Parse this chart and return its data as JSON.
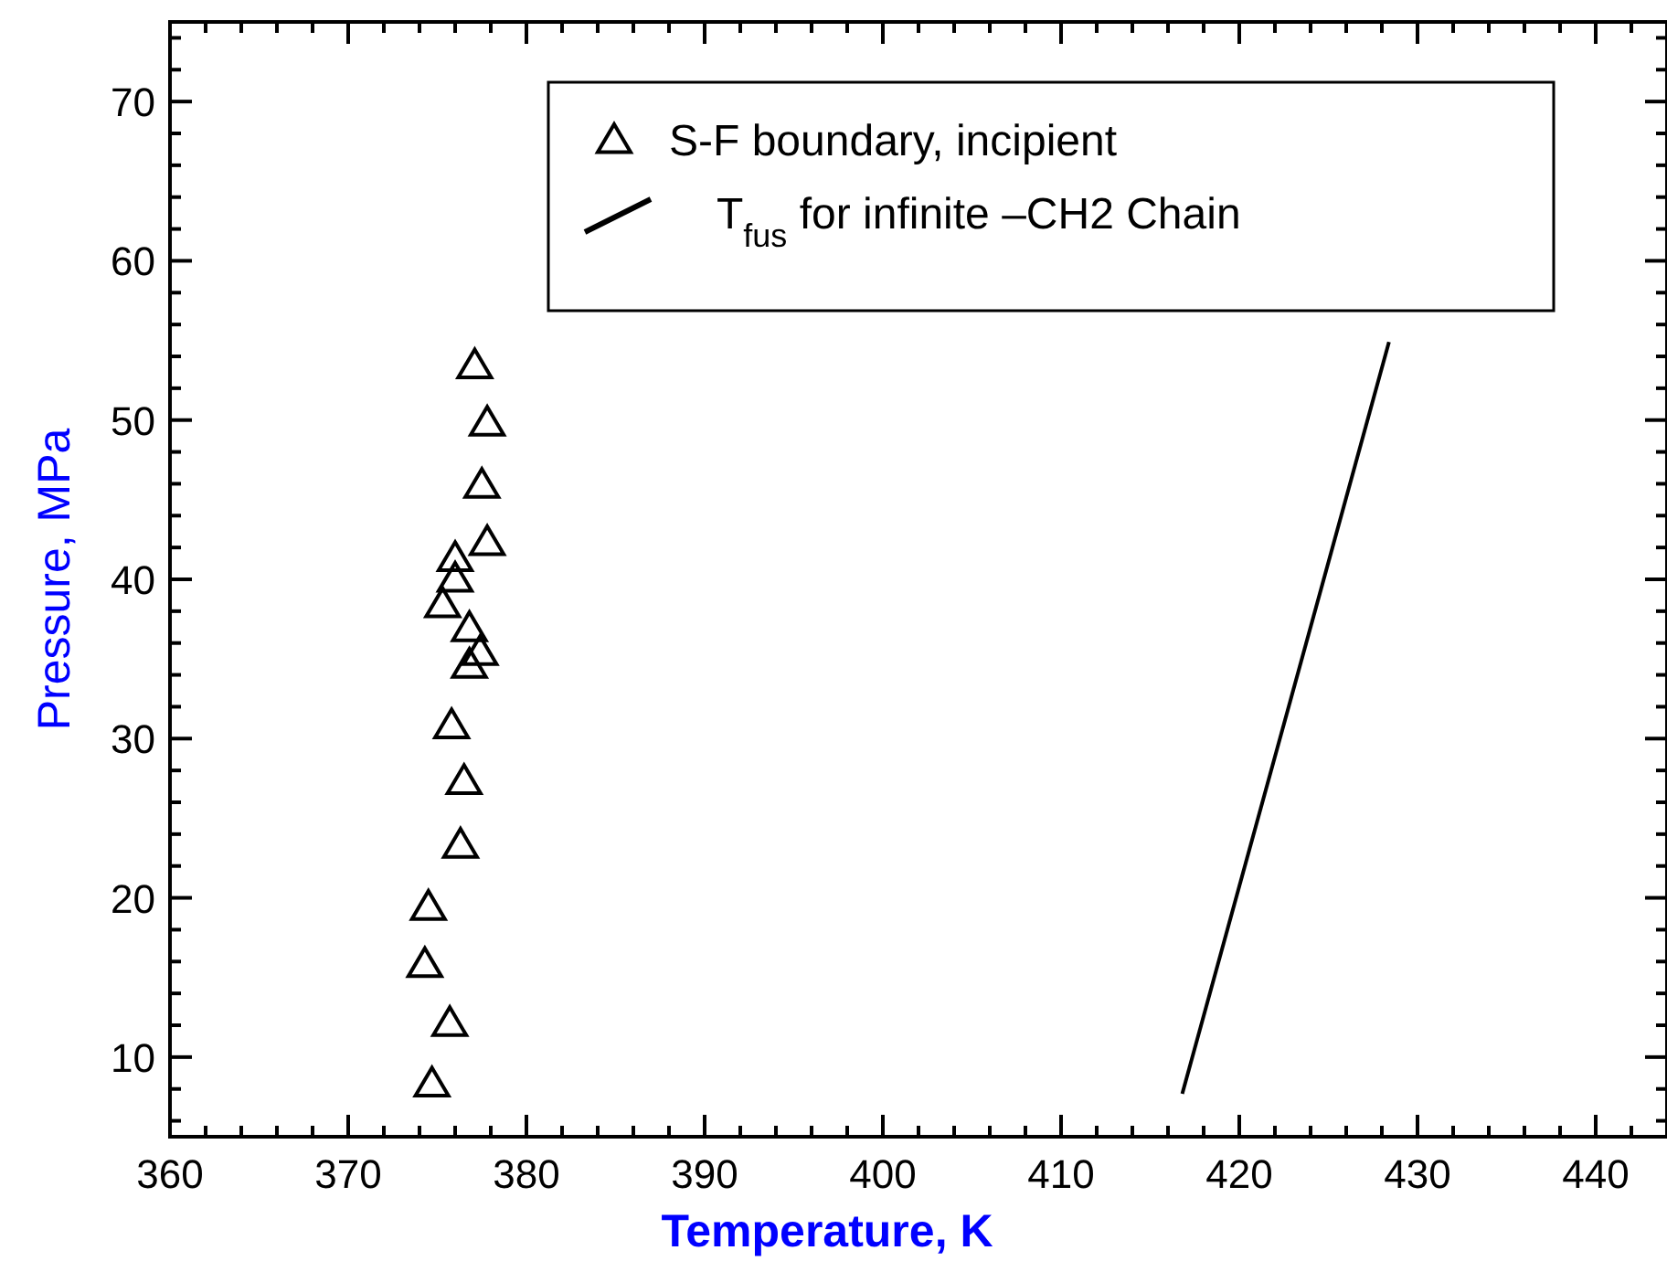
{
  "chart_data": {
    "type": "scatter",
    "xlabel": "Temperature, K",
    "ylabel": "Pressure, MPa",
    "xlim": [
      360,
      444
    ],
    "ylim": [
      5,
      75
    ],
    "xticks": [
      360,
      {
        "value": 362,
        "label": null
      },
      {
        "value": 364,
        "label": null
      },
      {
        "value": 366,
        "label": null
      },
      {
        "value": 368,
        "label": null
      },
      370,
      {
        "value": 372,
        "label": null
      },
      {
        "value": 374,
        "label": null
      },
      {
        "value": 376,
        "label": null
      },
      {
        "value": 378,
        "label": null
      },
      380,
      {
        "value": 382,
        "label": null
      },
      {
        "value": 384,
        "label": null
      },
      {
        "value": 386,
        "label": null
      },
      {
        "value": 388,
        "label": null
      },
      390,
      {
        "value": 392,
        "label": null
      },
      {
        "value": 394,
        "label": null
      },
      {
        "value": 396,
        "label": null
      },
      {
        "value": 398,
        "label": null
      },
      400,
      {
        "value": 402,
        "label": null
      },
      {
        "value": 404,
        "label": null
      },
      {
        "value": 406,
        "label": null
      },
      {
        "value": 408,
        "label": null
      },
      410,
      {
        "value": 412,
        "label": null
      },
      {
        "value": 414,
        "label": null
      },
      {
        "value": 416,
        "label": null
      },
      {
        "value": 418,
        "label": null
      },
      420,
      {
        "value": 422,
        "label": null
      },
      {
        "value": 424,
        "label": null
      },
      {
        "value": 426,
        "label": null
      },
      {
        "value": 428,
        "label": null
      },
      430,
      {
        "value": 432,
        "label": null
      },
      {
        "value": 434,
        "label": null
      },
      {
        "value": 436,
        "label": null
      },
      {
        "value": 438,
        "label": null
      },
      440,
      {
        "value": 442,
        "label": null
      }
    ],
    "yticks": [
      {
        "value": 6,
        "label": null
      },
      {
        "value": 8,
        "label": null
      },
      10,
      {
        "value": 12,
        "label": null
      },
      {
        "value": 14,
        "label": null
      },
      {
        "value": 16,
        "label": null
      },
      {
        "value": 18,
        "label": null
      },
      20,
      {
        "value": 22,
        "label": null
      },
      {
        "value": 24,
        "label": null
      },
      {
        "value": 26,
        "label": null
      },
      {
        "value": 28,
        "label": null
      },
      30,
      {
        "value": 32,
        "label": null
      },
      {
        "value": 34,
        "label": null
      },
      {
        "value": 36,
        "label": null
      },
      {
        "value": 38,
        "label": null
      },
      40,
      {
        "value": 42,
        "label": null
      },
      {
        "value": 44,
        "label": null
      },
      {
        "value": 46,
        "label": null
      },
      {
        "value": 48,
        "label": null
      },
      50,
      {
        "value": 52,
        "label": null
      },
      {
        "value": 54,
        "label": null
      },
      {
        "value": 56,
        "label": null
      },
      {
        "value": 58,
        "label": null
      },
      60,
      {
        "value": 62,
        "label": null
      },
      {
        "value": 64,
        "label": null
      },
      {
        "value": 66,
        "label": null
      },
      {
        "value": 68,
        "label": null
      },
      70,
      {
        "value": 72,
        "label": null
      },
      {
        "value": 74,
        "label": null
      }
    ],
    "legend": "top",
    "grid": false,
    "series": [
      {
        "name": "S-F boundary, incipient",
        "marker": "triangle",
        "color": "#000000",
        "x": [
          377.1,
          377.8,
          377.5,
          377.8,
          376.0,
          376.0,
          375.3,
          376.8,
          377.4,
          376.8,
          375.8,
          376.5,
          376.3,
          374.5,
          374.3,
          375.7,
          374.7
        ],
        "values": [
          53.4,
          49.8,
          45.9,
          42.3,
          41.3,
          40.0,
          38.4,
          36.9,
          35.4,
          34.6,
          30.8,
          27.3,
          23.3,
          19.4,
          15.8,
          12.1,
          8.3
        ]
      },
      {
        "name": "T$_{fus}$ for infinite –CH2 Chain",
        "type": "line",
        "marker": "none",
        "line_style": "solid",
        "color": "#000000",
        "x": [
          416.8,
          428.4
        ],
        "values": [
          7.7,
          54.9
        ]
      }
    ]
  }
}
